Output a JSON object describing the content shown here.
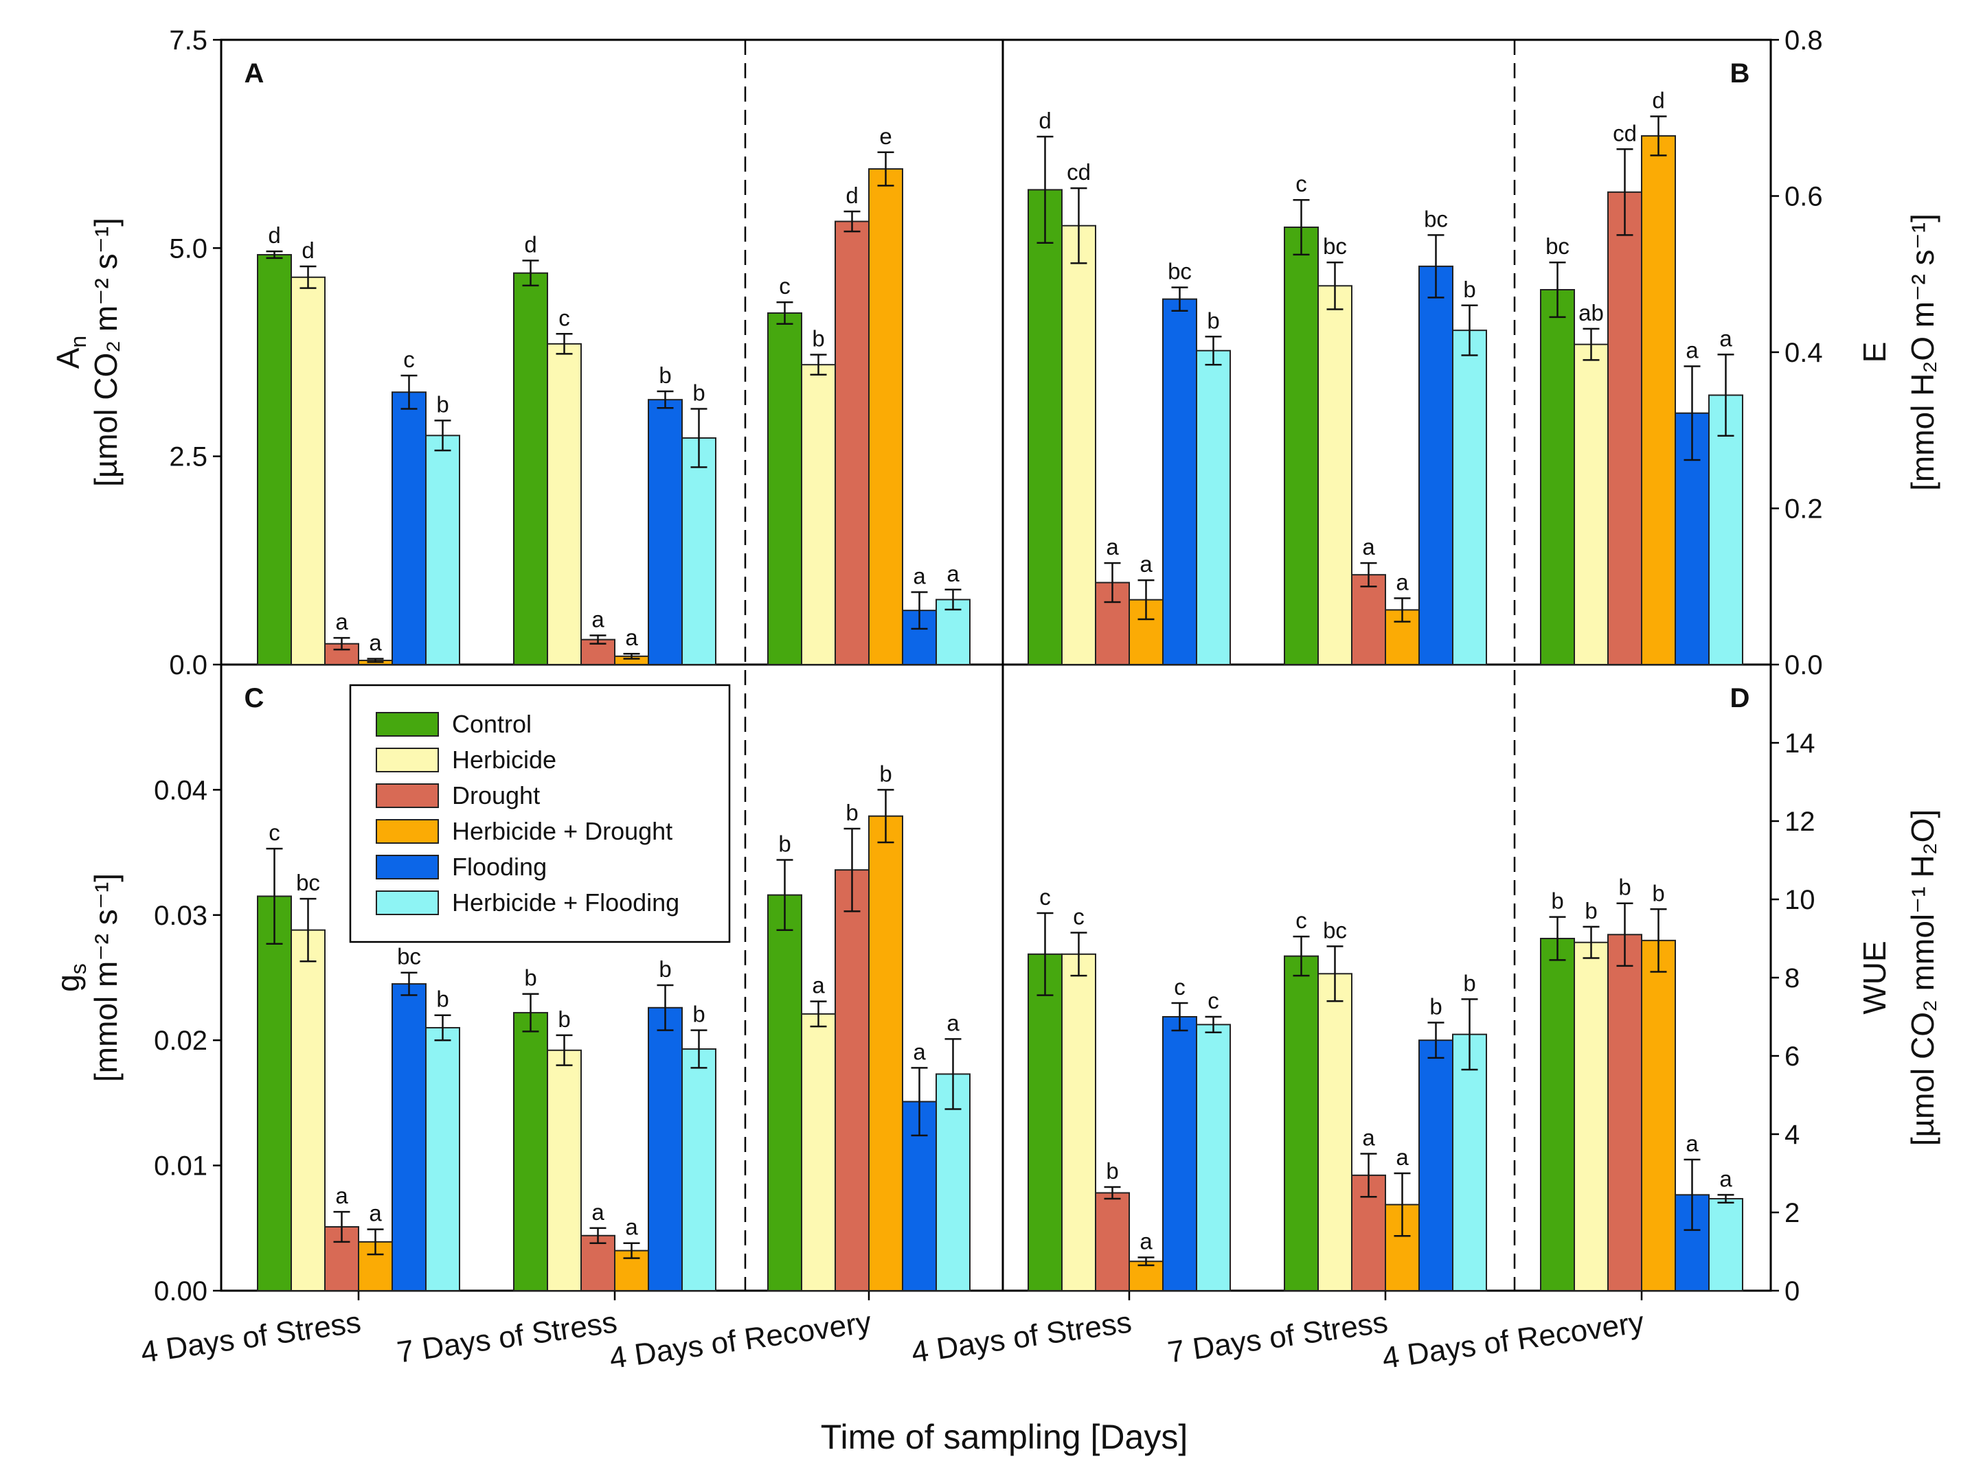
{
  "chart_data": {
    "type": "bar",
    "title": "",
    "xlabel": "Time of sampling [Days]",
    "categories": [
      "4 Days of Stress",
      "7 Days of Stress",
      "4 Days of Recovery"
    ],
    "legend": {
      "placement": "top-left of panel C",
      "entries": [
        {
          "name": "Control",
          "color": "#46a80f"
        },
        {
          "name": "Herbicide",
          "color": "#fdf9b2"
        },
        {
          "name": "Drought",
          "color": "#d86a55"
        },
        {
          "name": "Herbicide + Drought",
          "color": "#fbab05"
        },
        {
          "name": "Flooding",
          "color": "#0c66e8"
        },
        {
          "name": "Herbicide + Flooding",
          "color": "#8ef4f4"
        }
      ]
    },
    "panels": [
      {
        "id": "A",
        "ylabel_main": "A",
        "ylabel_sub": "n",
        "ylabel_unit": "[µmol CO₂ m⁻² s⁻¹]",
        "ylim": [
          0,
          7.5
        ],
        "yticks": [
          "0.0",
          "2.5",
          "5.0",
          "7.5"
        ],
        "series": [
          {
            "name": "Control",
            "values": [
              4.92,
              4.7,
              4.22
            ],
            "errors": [
              0.04,
              0.15,
              0.13
            ],
            "letters": [
              "d",
              "d",
              "c"
            ]
          },
          {
            "name": "Herbicide",
            "values": [
              4.65,
              3.85,
              3.6
            ],
            "errors": [
              0.13,
              0.12,
              0.12
            ],
            "letters": [
              "d",
              "c",
              "b"
            ]
          },
          {
            "name": "Drought",
            "values": [
              0.25,
              0.3,
              5.32
            ],
            "errors": [
              0.07,
              0.05,
              0.12
            ],
            "letters": [
              "a",
              "a",
              "d"
            ]
          },
          {
            "name": "Herbicide + Drought",
            "values": [
              0.05,
              0.1,
              5.95
            ],
            "errors": [
              0.02,
              0.03,
              0.2
            ],
            "letters": [
              "a",
              "a",
              "e"
            ]
          },
          {
            "name": "Flooding",
            "values": [
              3.27,
              3.18,
              0.65
            ],
            "errors": [
              0.2,
              0.1,
              0.22
            ],
            "letters": [
              "c",
              "b",
              "a"
            ]
          },
          {
            "name": "Herbicide + Flooding",
            "values": [
              2.75,
              2.72,
              0.78
            ],
            "errors": [
              0.18,
              0.35,
              0.12
            ],
            "letters": [
              "b",
              "b",
              "a"
            ]
          }
        ]
      },
      {
        "id": "B",
        "ylabel_main": "E",
        "ylabel_unit": "[mmol H₂O m⁻² s⁻¹]",
        "ylim": [
          0,
          0.8
        ],
        "yticks": [
          "0.0",
          "0.2",
          "0.4",
          "0.6",
          "0.8"
        ],
        "series": [
          {
            "name": "Control",
            "values": [
              0.608,
              0.56,
              0.48
            ],
            "errors": [
              0.068,
              0.035,
              0.035
            ],
            "letters": [
              "d",
              "c",
              "bc"
            ]
          },
          {
            "name": "Herbicide",
            "values": [
              0.562,
              0.485,
              0.41
            ],
            "errors": [
              0.048,
              0.03,
              0.02
            ],
            "letters": [
              "cd",
              "bc",
              "ab"
            ]
          },
          {
            "name": "Drought",
            "values": [
              0.105,
              0.115,
              0.605
            ],
            "errors": [
              0.025,
              0.015,
              0.055
            ],
            "letters": [
              "a",
              "a",
              "cd"
            ]
          },
          {
            "name": "Herbicide + Drought",
            "values": [
              0.083,
              0.07,
              0.677
            ],
            "errors": [
              0.025,
              0.015,
              0.025
            ],
            "letters": [
              "a",
              "a",
              "d"
            ]
          },
          {
            "name": "Flooding",
            "values": [
              0.468,
              0.51,
              0.322
            ],
            "errors": [
              0.015,
              0.04,
              0.06
            ],
            "letters": [
              "bc",
              "bc",
              "a"
            ]
          },
          {
            "name": "Herbicide + Flooding",
            "values": [
              0.402,
              0.428,
              0.345
            ],
            "errors": [
              0.018,
              0.032,
              0.052
            ],
            "letters": [
              "b",
              "b",
              "a"
            ]
          }
        ]
      },
      {
        "id": "C",
        "ylabel_main": "g",
        "ylabel_sub": "s",
        "ylabel_unit": "[mmol m⁻² s⁻¹]",
        "ylim": [
          0,
          0.05
        ],
        "yticks": [
          "0.00",
          "0.01",
          "0.02",
          "0.03",
          "0.04"
        ],
        "series": [
          {
            "name": "Control",
            "values": [
              0.0315,
              0.0222,
              0.0316
            ],
            "errors": [
              0.0038,
              0.0015,
              0.0028
            ],
            "letters": [
              "c",
              "b",
              "b"
            ]
          },
          {
            "name": "Herbicide",
            "values": [
              0.0288,
              0.0192,
              0.0221
            ],
            "errors": [
              0.0025,
              0.0012,
              0.001
            ],
            "letters": [
              "bc",
              "b",
              "a"
            ]
          },
          {
            "name": "Drought",
            "values": [
              0.0051,
              0.0044,
              0.0336
            ],
            "errors": [
              0.0012,
              0.0006,
              0.0033
            ],
            "letters": [
              "a",
              "a",
              "b"
            ]
          },
          {
            "name": "Herbicide + Drought",
            "values": [
              0.0039,
              0.0032,
              0.0379
            ],
            "errors": [
              0.001,
              0.0006,
              0.0021
            ],
            "letters": [
              "a",
              "a",
              "b"
            ]
          },
          {
            "name": "Flooding",
            "values": [
              0.0245,
              0.0226,
              0.0151
            ],
            "errors": [
              0.0009,
              0.0018,
              0.0027
            ],
            "letters": [
              "bc",
              "b",
              "a"
            ]
          },
          {
            "name": "Herbicide + Flooding",
            "values": [
              0.021,
              0.0193,
              0.0173
            ],
            "errors": [
              0.001,
              0.0015,
              0.0028
            ],
            "letters": [
              "b",
              "b",
              "a"
            ]
          }
        ]
      },
      {
        "id": "D",
        "ylabel_main": "WUE",
        "ylabel_unit": "[µmol CO₂ mmol⁻¹ H₂O]",
        "ylim": [
          0,
          16
        ],
        "yticks": [
          "0",
          "2",
          "4",
          "6",
          "8",
          "10",
          "12",
          "14"
        ],
        "series": [
          {
            "name": "Control",
            "values": [
              8.6,
              8.55,
              9.0
            ],
            "errors": [
              1.05,
              0.5,
              0.55
            ],
            "letters": [
              "c",
              "c",
              "b"
            ]
          },
          {
            "name": "Herbicide",
            "values": [
              8.6,
              8.1,
              8.9
            ],
            "errors": [
              0.55,
              0.7,
              0.4
            ],
            "letters": [
              "c",
              "bc",
              "b"
            ]
          },
          {
            "name": "Drought",
            "values": [
              2.5,
              2.95,
              9.1
            ],
            "errors": [
              0.15,
              0.55,
              0.8
            ],
            "letters": [
              "b",
              "a",
              "b"
            ]
          },
          {
            "name": "Herbicide + Drought",
            "values": [
              0.75,
              2.2,
              8.95
            ],
            "errors": [
              0.1,
              0.8,
              0.8
            ],
            "letters": [
              "a",
              "a",
              "b"
            ]
          },
          {
            "name": "Flooding",
            "values": [
              7.0,
              6.4,
              2.45
            ],
            "errors": [
              0.35,
              0.45,
              0.9
            ],
            "letters": [
              "c",
              "b",
              "a"
            ]
          },
          {
            "name": "Herbicide + Flooding",
            "values": [
              6.8,
              6.55,
              2.35
            ],
            "errors": [
              0.2,
              0.9,
              0.1
            ],
            "letters": [
              "c",
              "b",
              "a"
            ]
          }
        ]
      }
    ]
  }
}
